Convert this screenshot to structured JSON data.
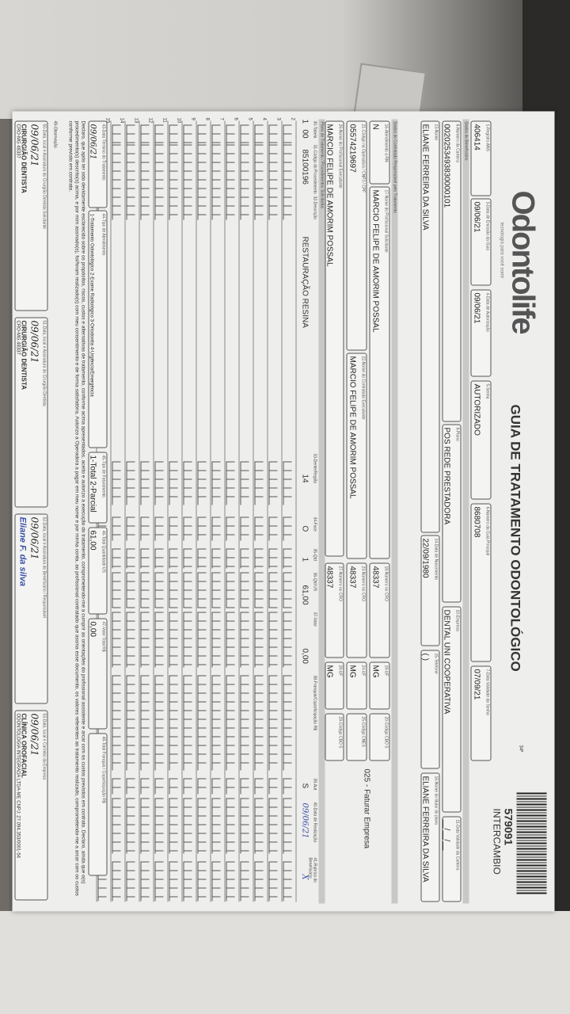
{
  "doc": {
    "logo": "Odontolife",
    "tagline": "tecnologia para você sorrir",
    "title": "GUIA DE TRATAMENTO ODONTOLÓGICO",
    "page": "34ª",
    "guide_number": "579091",
    "guide_type": "INTERCAMBIO",
    "fields": [
      {
        "label": "1-Registro ANS",
        "value": "406414"
      },
      {
        "label": "3-Data de Emissão da Guia",
        "value": "09/06/21"
      },
      {
        "label": "4-Data de Autorização",
        "value": "09/06/21"
      },
      {
        "label": "5-Senha",
        "value": "AUTORIZADO"
      },
      {
        "label": "6-Número da Guia Principal",
        "value": "8680708"
      },
      {
        "label": "7-Data Validade da Senha",
        "value": "07/09/21"
      },
      {
        "label": "8-Número da Carteira",
        "value": "0020253493830000101"
      },
      {
        "label": "9-Plano",
        "value": "POS REDE PRESTADORA"
      },
      {
        "label": "10-Empresa",
        "value": "DENTAL UNI COOPERATIVA"
      },
      {
        "label": "11-Data Validade da Carteira",
        "value": "__/__/__"
      },
      {
        "label": "12-Número do Cartão Nacional de Saúde",
        "value": ""
      },
      {
        "label": "13-Nome",
        "value": "ELIANE FERREIRA DA SILVA"
      },
      {
        "label": "14-Data de Nascimento",
        "value": "22/09/1980"
      },
      {
        "label": "15-Telefone",
        "value": "(   )"
      },
      {
        "label": "16-Nome do titular do plano",
        "value": "ELIANE FERREIRA DA SILVA"
      },
      {
        "label": "16-Atendimento a RN",
        "value": "N"
      },
      {
        "label": "17-Nome do Profissional Solicitante",
        "value": "MARCIO FELIPE DE AMORIM POSSAL"
      },
      {
        "label": "18-Número no CRO",
        "value": "48337"
      },
      {
        "label": "19-UF",
        "value": "MG"
      },
      {
        "label": "20-Código CBO S",
        "value": ""
      },
      {
        "label": "21-Código na Operadora / CNPJ / CPF",
        "value": "05574219697"
      },
      {
        "label": "22-Nome do Contratado Executante",
        "value": "MARCIO FELIPE DE AMORIM POSSAL"
      },
      {
        "label": "23-Número no CRO",
        "value": "48337"
      },
      {
        "label": "24-UF",
        "value": "MG"
      },
      {
        "label": "25-Código CNES",
        "value": ""
      },
      {
        "label": "26-Nome do Profissional Executante",
        "value": "MARCIO FELIPE DE AMORIM POSSAL"
      },
      {
        "label": "27-Número no CRO",
        "value": "48337"
      },
      {
        "label": "28-UF",
        "value": "MG"
      },
      {
        "label": "29-Código CBO S",
        "value": ""
      }
    ],
    "billing_note": "025 - Faturar Empresa",
    "band_beneficiary": "Dados do Beneficiário",
    "band_requester": "Dados do Contratado Responsável pelo Tratamento",
    "band_procedures": "Plano de Tratamento / Procedimentos Solicitados",
    "proc_headers": [
      "30-Tabela",
      "31-Código do Procedimento",
      "32-Descrição",
      "33-Dente/Região",
      "34-Face",
      "35-Qtd",
      "36-Qtd US",
      "37-Valor",
      "38-Franquia/Coparticipação R$",
      "39-Aut",
      "40-Data de Realização",
      "41-Rubrica do Beneficiário"
    ],
    "procedures": [
      {
        "num": "1",
        "table": "00",
        "code": "85100196",
        "desc": "RESTAURAÇÃO RESINA",
        "tooth": "14",
        "face": "O",
        "qty": "1",
        "us": "61,00",
        "value": "0,00",
        "aut": "S",
        "date": "09/06/21",
        "sign": "X"
      }
    ],
    "empty_rows": [
      "2",
      "3",
      "4",
      "5",
      "6",
      "7",
      "8",
      "9",
      "10",
      "11",
      "12",
      "13",
      "14",
      "15"
    ],
    "totals": [
      {
        "label": "43-Data Término do Tratamento",
        "value": "09/06/21"
      },
      {
        "label": "44-Tipo de Atendimento",
        "value": "1-Tratamento Odontológico 2-Exame Radiológico 3-Ortodontia 4-Urgência/Emergência"
      },
      {
        "label": "45-Tipo de Faturamento",
        "value": "1-Total 2-Parcial"
      },
      {
        "label": "46-Total Quantidade US",
        "value": "61,00"
      },
      {
        "label": "47-Valor Total R$",
        "value": "0,00"
      },
      {
        "label": "48-Total Franquia / Coparticipação R$",
        "value": ""
      }
    ],
    "declaration": "Declaro, que após ter sido devidamente esclarecido sobre os propósitos, riscos, custos e alternativas de tratamento, conforme acima apresentados, aceito e autorizo a execução do tratamento, comprometendo-me a cumprir as orientações do profissional assistente e arcar com os custos previstos em contrato. Declaro, ainda que o(s) procedimento(s) descrito(s) acima, e por mim assinado(s), foi/foram realizado(s) com meu consentimento e de forma satisfatória. Autorizo a Operadora a pagar em meu nome e por minha conta, ao profissional contratado que assina esse documento, os valores referentes ao tratamento realizado, comprometendo-me a arcar com os custos conforme previsto em contrato.",
    "obs_label": "49-Observação",
    "signatures": [
      {
        "label": "50-Data, local e Assinatura do Cirurgião Dentista Solicitante",
        "date": "09/06/21",
        "name": "CIRURGIÃO DENTISTA",
        "cro": "CRO-MG 48337"
      },
      {
        "label": "51-Data, local e Assinatura do Cirurgião Dentista",
        "date": "09/06/21",
        "name": "CIRURGIÃO DENTISTA",
        "cro": "CRO-MG 48337"
      },
      {
        "label": "52-Data, local e Assinatura do Beneficiário / Responsável",
        "date": "09/06/21",
        "name": "Eliane F. da silva",
        "cro": ""
      },
      {
        "label": "53-Data, local e Carimbo da Empresa",
        "date": "09/06/21",
        "name": "CLÍNICA OROFACIAL",
        "cro": "ODONTOLOGIA INTEGRADA LTDA-ME  CNPJ: 27.094.353/0001-54"
      }
    ]
  }
}
